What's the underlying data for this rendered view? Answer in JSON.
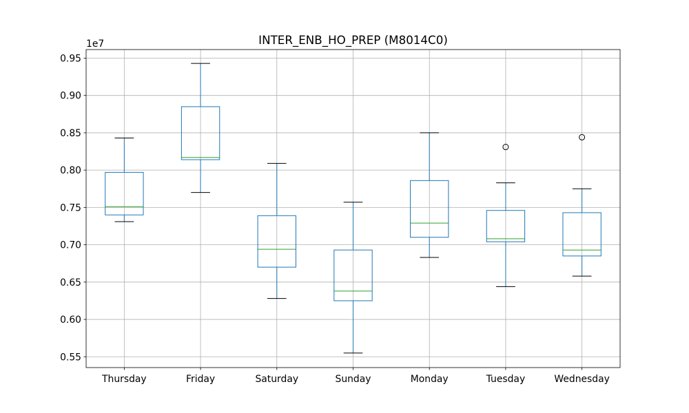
{
  "chart_data": {
    "type": "box",
    "title": "INTER_ENB_HO_PREP (M8014C0)",
    "xlabel": "",
    "ylabel": "",
    "offset_label": "1e7",
    "categories": [
      "Thursday",
      "Friday",
      "Saturday",
      "Sunday",
      "Monday",
      "Tuesday",
      "Wednesday"
    ],
    "boxes": [
      {
        "category": "Thursday",
        "whisker_low": 0.731,
        "q1": 0.74,
        "median": 0.751,
        "q3": 0.797,
        "whisker_high": 0.843,
        "outliers": []
      },
      {
        "category": "Friday",
        "whisker_low": 0.77,
        "q1": 0.814,
        "median": 0.817,
        "q3": 0.885,
        "whisker_high": 0.943,
        "outliers": []
      },
      {
        "category": "Saturday",
        "whisker_low": 0.628,
        "q1": 0.67,
        "median": 0.694,
        "q3": 0.739,
        "whisker_high": 0.809,
        "outliers": []
      },
      {
        "category": "Sunday",
        "whisker_low": 0.555,
        "q1": 0.625,
        "median": 0.638,
        "q3": 0.693,
        "whisker_high": 0.757,
        "outliers": []
      },
      {
        "category": "Monday",
        "whisker_low": 0.683,
        "q1": 0.71,
        "median": 0.729,
        "q3": 0.786,
        "whisker_high": 0.85,
        "outliers": []
      },
      {
        "category": "Tuesday",
        "whisker_low": 0.644,
        "q1": 0.704,
        "median": 0.708,
        "q3": 0.746,
        "whisker_high": 0.783,
        "outliers": [
          0.831
        ]
      },
      {
        "category": "Wednesday",
        "whisker_low": 0.658,
        "q1": 0.685,
        "median": 0.693,
        "q3": 0.743,
        "whisker_high": 0.775,
        "outliers": [
          0.844
        ]
      }
    ],
    "ylim": [
      0.5355,
      0.9615
    ],
    "yticks": [
      0.55,
      0.6,
      0.65,
      0.7,
      0.75,
      0.8,
      0.85,
      0.9,
      0.95
    ],
    "ytick_labels": [
      "0.55",
      "0.60",
      "0.65",
      "0.70",
      "0.75",
      "0.80",
      "0.85",
      "0.90",
      "0.95"
    ],
    "grid": true,
    "colors": {
      "box": "#1f77b4",
      "median": "#2ca02c",
      "whisker": "#1f77b4",
      "cap": "#000000",
      "grid": "#b0b0b0",
      "axis": "#000000"
    }
  }
}
